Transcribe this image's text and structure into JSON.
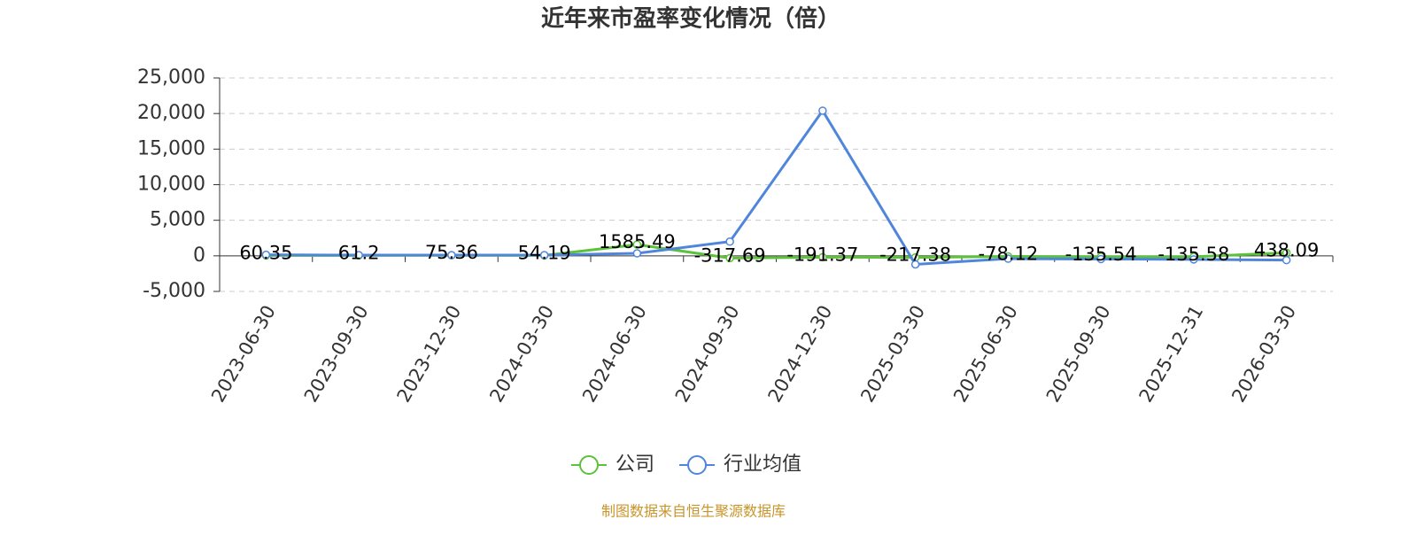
{
  "chart_data": {
    "type": "line",
    "title": "近年来市盈率变化情况（倍）",
    "categories": [
      "2023-06-30",
      "2023-09-30",
      "2023-12-30",
      "2024-03-30",
      "2024-06-30",
      "2024-09-30",
      "2024-12-30",
      "2025-03-30",
      "2025-06-30",
      "2025-09-30",
      "2025-12-31",
      "2026-03-30"
    ],
    "series": [
      {
        "name": "公司",
        "color": "#5cc23a",
        "values": [
          60.35,
          61.2,
          75.36,
          54.19,
          1585.49,
          -317.69,
          -191.37,
          -217.38,
          -78.12,
          -135.54,
          -135.58,
          438.09
        ],
        "show_labels": true
      },
      {
        "name": "行业均值",
        "color": "#4f86dc",
        "values": [
          150,
          100,
          100,
          100,
          350,
          2000,
          20400,
          -1200,
          -400,
          -450,
          -500,
          -600
        ],
        "show_labels": false
      }
    ],
    "ylim": [
      -5000,
      25000
    ],
    "yticks": [
      {
        "value": -5000,
        "label": "-5,000"
      },
      0,
      {
        "value": 5000,
        "label": "5,000"
      },
      {
        "value": 10000,
        "label": "10,000"
      },
      {
        "value": 15000,
        "label": "15,000"
      },
      {
        "value": 20000,
        "label": "20,000"
      },
      {
        "value": 25000,
        "label": "25,000"
      }
    ],
    "grid": true,
    "legend": "bottom",
    "source": "制图数据来自恒生聚源数据库"
  }
}
